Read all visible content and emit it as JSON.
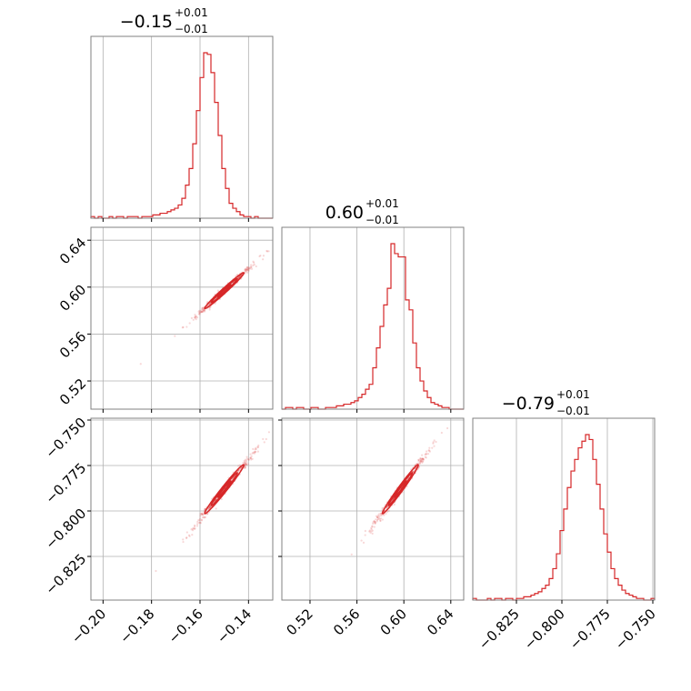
{
  "chart_data": {
    "type": "corner",
    "color": "#d62728",
    "parameters": [
      {
        "title_value": "−0.15",
        "title_plus": "+0.01",
        "title_minus": "−0.01",
        "median": -0.15,
        "sigma": 0.0045,
        "range": [
          -0.205,
          -0.13
        ]
      },
      {
        "title_value": "0.60",
        "title_plus": "+0.01",
        "title_minus": "−0.01",
        "median": 0.597,
        "sigma": 0.0085,
        "range": [
          0.496,
          0.651
        ]
      },
      {
        "title_value": "−0.79",
        "title_plus": "+0.01",
        "title_minus": "−0.01",
        "median": -0.788,
        "sigma": 0.0075,
        "range": [
          -0.849,
          -0.749
        ]
      }
    ],
    "x_ticks": [
      {
        "values": [
          -0.2,
          -0.18,
          -0.16,
          -0.14
        ],
        "labels": [
          "−0.20",
          "−0.18",
          "−0.16",
          "−0.14"
        ]
      },
      {
        "values": [
          0.52,
          0.56,
          0.6,
          0.64
        ],
        "labels": [
          "0.52",
          "0.56",
          "0.60",
          "0.64"
        ]
      },
      {
        "values": [
          -0.825,
          -0.8,
          -0.775,
          -0.75
        ],
        "labels": [
          "−0.825",
          "−0.800",
          "−0.775",
          "−0.750"
        ]
      }
    ],
    "y_ticks": [
      null,
      {
        "values": [
          0.52,
          0.56,
          0.6,
          0.64
        ],
        "labels": [
          "0.52",
          "0.56",
          "0.60",
          "0.64"
        ]
      },
      {
        "values": [
          -0.825,
          -0.8,
          -0.775,
          -0.75
        ],
        "labels": [
          "−0.825",
          "−0.800",
          "−0.775",
          "−0.750"
        ]
      }
    ],
    "histograms": [
      {
        "bins": 50,
        "counts": [
          1,
          0,
          1,
          0,
          0,
          1,
          0,
          1,
          1,
          0,
          1,
          1,
          1,
          0,
          1,
          1,
          1,
          2,
          2,
          3,
          3,
          4,
          5,
          6,
          8,
          12,
          20,
          30,
          45,
          65,
          85,
          100,
          99,
          88,
          70,
          50,
          30,
          18,
          9,
          6,
          4,
          2,
          1,
          1,
          0,
          1,
          0,
          0,
          0,
          0
        ]
      },
      {
        "bins": 50,
        "counts": [
          0,
          1,
          1,
          0,
          1,
          1,
          0,
          0,
          1,
          1,
          0,
          0,
          1,
          1,
          1,
          2,
          2,
          3,
          3,
          4,
          5,
          7,
          9,
          12,
          15,
          25,
          37,
          50,
          63,
          73,
          100,
          94,
          92,
          92,
          66,
          60,
          40,
          25,
          17,
          11,
          7,
          4,
          3,
          2,
          1,
          1,
          0,
          0,
          0,
          0
        ]
      },
      {
        "bins": 50,
        "counts": [
          1,
          0,
          0,
          0,
          1,
          0,
          1,
          1,
          0,
          1,
          1,
          0,
          1,
          1,
          2,
          2,
          3,
          4,
          5,
          7,
          9,
          13,
          19,
          28,
          42,
          55,
          68,
          78,
          85,
          92,
          96,
          100,
          97,
          85,
          70,
          55,
          40,
          29,
          19,
          13,
          9,
          6,
          4,
          3,
          2,
          1,
          1,
          0,
          0,
          1
        ]
      }
    ]
  }
}
